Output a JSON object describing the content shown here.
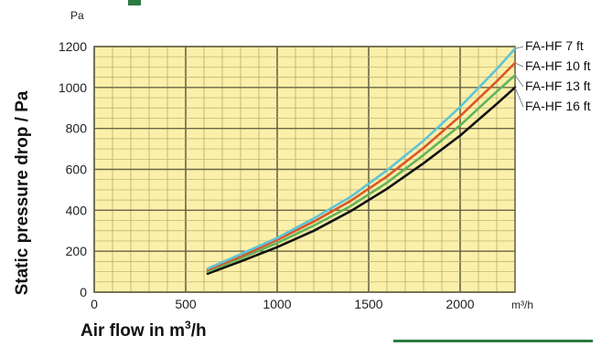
{
  "colors": {
    "plot_background": "#fbf0a9",
    "grid_minor": "#b8ab6e",
    "grid_major": "#6b6548",
    "accent_green": "#2c7a3f",
    "leader_line": "#888888"
  },
  "labels": {
    "y_axis_title": "Static pressure drop / Pa",
    "x_axis_title_prefix": "Air flow in m",
    "x_axis_title_sup": "3",
    "x_axis_title_suffix": "/h",
    "y_unit": "Pa",
    "x_unit": "m³/h"
  },
  "chart_data": {
    "type": "line",
    "title": "",
    "xlabel": "Air flow in m³/h",
    "ylabel": "Static pressure drop / Pa",
    "xlim": [
      0,
      2300
    ],
    "ylim": [
      0,
      1200
    ],
    "x_ticks": [
      0,
      500,
      1000,
      1500,
      2000
    ],
    "y_ticks": [
      0,
      200,
      400,
      600,
      800,
      1000,
      1200
    ],
    "grid": true,
    "legend_placement": "right",
    "series": [
      {
        "name": "FA-HF 7 ft",
        "color": "#5ec4d8",
        "x": [
          620,
          800,
          1000,
          1200,
          1400,
          1600,
          1800,
          2000,
          2200,
          2300
        ],
        "y": [
          115,
          185,
          265,
          360,
          465,
          595,
          740,
          905,
          1090,
          1190
        ]
      },
      {
        "name": "FA-HF 10 ft",
        "color": "#d9572a",
        "x": [
          620,
          800,
          1000,
          1200,
          1400,
          1600,
          1800,
          2000,
          2200,
          2300
        ],
        "y": [
          108,
          175,
          255,
          345,
          445,
          565,
          705,
          860,
          1030,
          1120
        ]
      },
      {
        "name": "FA-HF 13 ft",
        "color": "#62b35a",
        "x": [
          620,
          800,
          1000,
          1200,
          1400,
          1600,
          1800,
          2000,
          2200,
          2300
        ],
        "y": [
          100,
          165,
          240,
          325,
          420,
          535,
          670,
          815,
          980,
          1060
        ]
      },
      {
        "name": "FA-HF 16 ft",
        "color": "#111111",
        "x": [
          620,
          800,
          1000,
          1200,
          1400,
          1600,
          1800,
          2000,
          2200,
          2300
        ],
        "y": [
          90,
          150,
          220,
          300,
          395,
          505,
          630,
          765,
          920,
          1000
        ]
      }
    ]
  }
}
